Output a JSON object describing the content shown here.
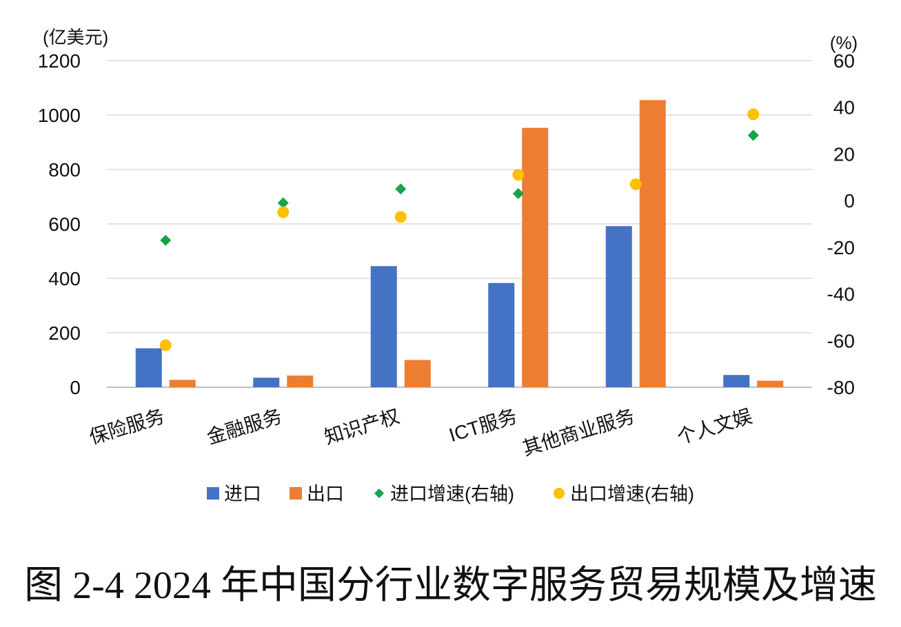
{
  "caption": "图 2-4 2024 年中国分行业数字服务贸易规模及增速",
  "chart_data": {
    "type": "bar",
    "categories": [
      "保险服务",
      "金融服务",
      "知识产权",
      "ICT服务",
      "其他商业服务",
      "个人文娱"
    ],
    "left_unit": "(亿美元)",
    "right_unit": "(%)",
    "ylim_left": [
      0,
      1200
    ],
    "yticks_left": [
      "0",
      "200",
      "400",
      "600",
      "800",
      "1000",
      "1200"
    ],
    "ylim_right": [
      -80,
      60
    ],
    "yticks_right": [
      "-80",
      "-60",
      "-40",
      "-20",
      "0",
      "20",
      "40",
      "60"
    ],
    "grid": true,
    "legend_position": "bottom",
    "series": [
      {
        "name": "进口",
        "kind": "bar",
        "axis": "left",
        "color": "#4472C4",
        "values": [
          143,
          35,
          445,
          383,
          592,
          45
        ]
      },
      {
        "name": "出口",
        "kind": "bar",
        "axis": "left",
        "color": "#ED7D31",
        "values": [
          27,
          43,
          100,
          953,
          1055,
          24
        ]
      },
      {
        "name": "进口增速(右轴)",
        "kind": "diamond",
        "axis": "right",
        "color": "#16A34A",
        "values": [
          -17,
          -1,
          5,
          3,
          7,
          28
        ]
      },
      {
        "name": "出口增速(右轴)",
        "kind": "circle",
        "axis": "right",
        "color": "#FFC000",
        "values": [
          -62,
          -5,
          -7,
          11,
          7,
          37
        ]
      }
    ]
  }
}
